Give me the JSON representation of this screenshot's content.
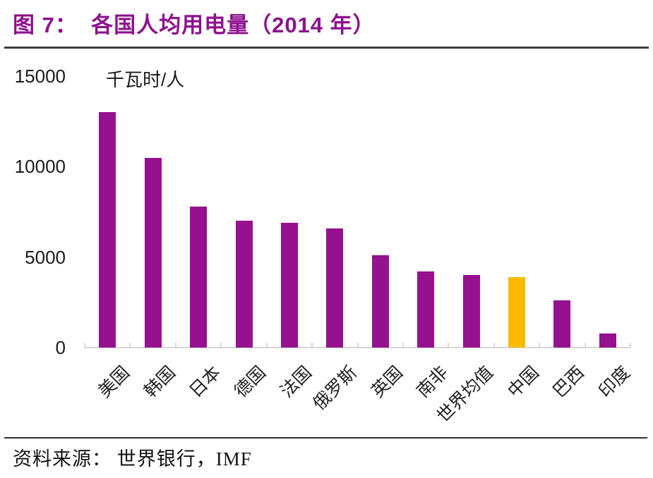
{
  "figure": {
    "title": "图 7：  各国人均用电量（2014 年）",
    "title_color": "#8E118E"
  },
  "chart_data": {
    "type": "bar",
    "title": "各国人均用电量（2014 年）",
    "unit_label": "千瓦时/人",
    "categories": [
      "美国",
      "韩国",
      "日本",
      "德国",
      "法国",
      "俄罗斯",
      "英国",
      "南非",
      "世界均值",
      "中国",
      "巴西",
      "印度"
    ],
    "values": [
      13000,
      10500,
      7800,
      7000,
      6900,
      6600,
      5100,
      4200,
      4000,
      3900,
      2600,
      800
    ],
    "highlight_index": 9,
    "highlight_category": "中国",
    "bar_color": "#96118F",
    "highlight_color": "#FBBA00",
    "ylim": [
      0,
      15000
    ],
    "yticks": [
      0,
      5000,
      10000,
      15000
    ],
    "ytick_labels": [
      "0",
      "5000",
      "10000",
      "15000"
    ],
    "grid": false,
    "legend": "none",
    "xlabel_rotation_deg": -45
  },
  "source": {
    "text": "资料来源： 世界银行，IMF"
  }
}
